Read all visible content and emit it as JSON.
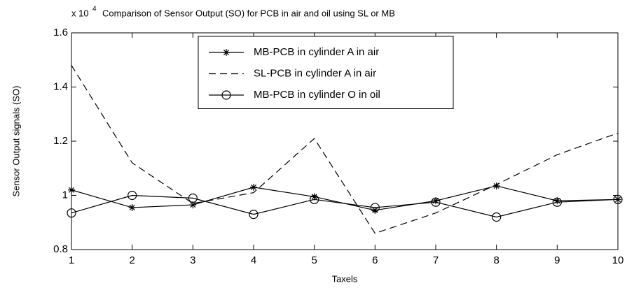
{
  "chart_data": {
    "type": "line",
    "title": "Comparison of Sensor Output (SO) for PCB in air and oil using SL or MB",
    "y_multiplier": "x 10",
    "y_multiplier_exponent": "4",
    "xlabel": "Taxels",
    "ylabel": "Sensor Output signals (SO)",
    "x": [
      1,
      2,
      3,
      4,
      5,
      6,
      7,
      8,
      9,
      10
    ],
    "xlim": [
      1,
      10
    ],
    "xticks": [
      1,
      2,
      3,
      4,
      5,
      6,
      7,
      8,
      9,
      10
    ],
    "ylim": [
      0.8,
      1.6
    ],
    "yticks": [
      0.8,
      1,
      1.2,
      1.4,
      1.6
    ],
    "grid": false,
    "legend": "top",
    "series": [
      {
        "name": "MB-PCB in cylinder A in air",
        "color": "#000000",
        "marker": "star",
        "dash": false,
        "values": [
          1.02,
          0.955,
          0.965,
          1.03,
          0.995,
          0.945,
          0.98,
          1.035,
          0.98,
          0.985
        ]
      },
      {
        "name": "SL-PCB in cylinder A in air",
        "color": "#000000",
        "marker": "none",
        "dash": true,
        "values": [
          1.48,
          1.12,
          0.97,
          1.01,
          1.21,
          0.86,
          0.935,
          1.04,
          1.15,
          1.23
        ]
      },
      {
        "name": "MB-PCB in cylinder O in oil",
        "color": "#000000",
        "marker": "circle",
        "dash": false,
        "values": [
          0.935,
          1.0,
          0.99,
          0.93,
          0.985,
          0.955,
          0.975,
          0.92,
          0.975,
          0.985
        ]
      }
    ]
  }
}
